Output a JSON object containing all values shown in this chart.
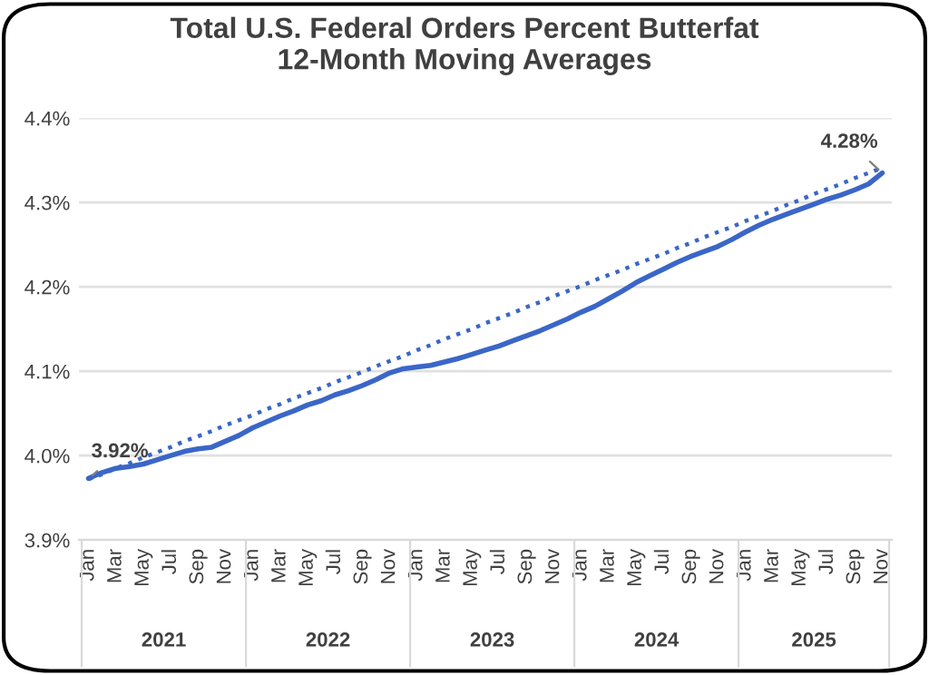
{
  "chart_data": {
    "type": "line",
    "title": "Total U.S. Federal Orders Percent Butterfat",
    "subtitle": "12-Month Moving Averages",
    "categories": [
      "Jan",
      null,
      "Mar",
      null,
      "May",
      null,
      "Jul",
      null,
      "Sep",
      null,
      "Nov",
      null,
      "Jan",
      null,
      "Mar",
      null,
      "May",
      null,
      "Jul",
      null,
      "Sep",
      null,
      "Nov",
      null,
      "Jan",
      null,
      "Mar",
      null,
      "May",
      null,
      "Jul",
      null,
      "Sep",
      null,
      "Nov",
      null,
      "Jan",
      null,
      "Mar",
      null,
      "May",
      null,
      "Jul",
      null,
      "Sep",
      null,
      "Nov",
      null,
      "Jan",
      null,
      "Mar",
      null,
      "May",
      null,
      "Jul",
      null,
      "Sep",
      null,
      "Nov"
    ],
    "series": [
      {
        "color": "#3a66c8",
        "line_style": "solid",
        "values": [
          3.973,
          3.98,
          3.985,
          3.987,
          3.99,
          3.995,
          4.0,
          4.005,
          4.008,
          4.01,
          4.017,
          4.024,
          4.033,
          4.04,
          4.047,
          4.053,
          4.06,
          4.065,
          4.072,
          4.077,
          4.083,
          4.09,
          4.098,
          4.103,
          4.105,
          4.107,
          4.111,
          4.115,
          4.12,
          4.125,
          4.13,
          4.136,
          4.142,
          4.148,
          4.155,
          4.162,
          4.17,
          4.177,
          4.186,
          4.195,
          4.205,
          4.213,
          4.221,
          4.229,
          4.236,
          4.242,
          4.248,
          4.256,
          4.265,
          4.273,
          4.28,
          4.286,
          4.292,
          4.298,
          4.304,
          4.309,
          4.315,
          4.322,
          4.335
        ]
      },
      {
        "color": "#3a66c8",
        "line_style": "dotted",
        "values": [
          3.972,
          3.978,
          3.985,
          3.991,
          3.998,
          4.004,
          4.01,
          4.017,
          4.023,
          4.029,
          4.036,
          4.042,
          4.048,
          4.055,
          4.061,
          4.068,
          4.074,
          4.08,
          4.087,
          4.093,
          4.099,
          4.106,
          4.112,
          4.118,
          4.125,
          4.131,
          4.138,
          4.144,
          4.15,
          4.157,
          4.163,
          4.169,
          4.176,
          4.182,
          4.189,
          4.195,
          4.201,
          4.208,
          4.214,
          4.22,
          4.227,
          4.233,
          4.239,
          4.246,
          4.252,
          4.259,
          4.265,
          4.271,
          4.278,
          4.284,
          4.29,
          4.297,
          4.303,
          4.31,
          4.316,
          4.322,
          4.329,
          4.335,
          4.341
        ]
      }
    ],
    "annotations": [
      "3.92%",
      "4.28%",
      "2021",
      "2022",
      "2023",
      "2024",
      "2025"
    ],
    "ylim": [
      3.9,
      4.4
    ],
    "yticks": [
      {
        "value": 3.9,
        "label": "3.9%"
      },
      {
        "value": 4.0,
        "label": "4.0%"
      },
      {
        "value": 4.1,
        "label": "4.1%"
      },
      {
        "value": 4.2,
        "label": "4.2%"
      },
      {
        "value": 4.3,
        "label": "4.3%"
      },
      {
        "value": 4.4,
        "label": "4.4%"
      }
    ],
    "grid": "y",
    "marker": "none"
  }
}
